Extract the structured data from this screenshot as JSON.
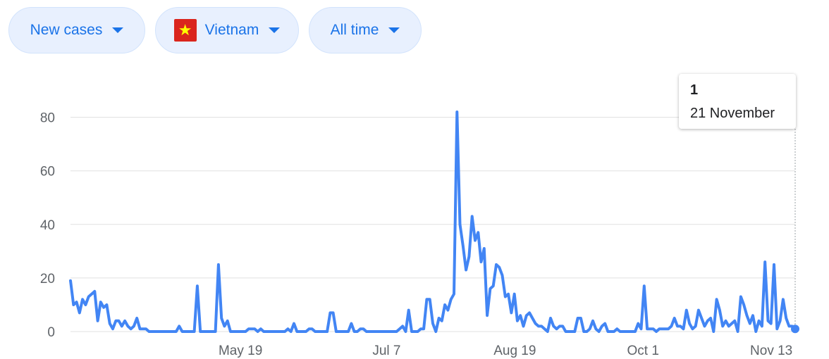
{
  "controls": {
    "metric": {
      "label": "New cases",
      "icon": "caret-down-icon"
    },
    "country": {
      "label": "Vietnam",
      "flag_icon": "vietnam-flag-icon",
      "flag_colors": {
        "field": "#da251d",
        "star": "#ffff00"
      }
    },
    "range": {
      "label": "All time",
      "icon": "caret-down-icon"
    }
  },
  "tooltip": {
    "value": "1",
    "date": "21 November"
  },
  "colors": {
    "series": "#4285f4",
    "accent": "#1a73e8",
    "grid": "#e0e0e0",
    "chip_bg": "#e8f0fe"
  },
  "chart_data": {
    "type": "line",
    "x_start": "2020-03-23",
    "x_end": "2020-11-21",
    "x_ticks": [
      "May 19",
      "Jul 7",
      "Aug 19",
      "Oct 1",
      "Nov 13"
    ],
    "y_ticks": [
      0,
      20,
      40,
      60,
      80
    ],
    "ylim": [
      0,
      82
    ],
    "grid": true,
    "legend": "none",
    "series": [
      {
        "values": [
          19,
          10,
          11,
          7,
          12,
          10,
          13,
          14,
          15,
          4,
          11,
          9,
          10,
          3,
          1,
          4,
          4,
          2,
          4,
          2,
          1,
          2,
          5,
          1,
          1,
          1,
          0,
          0,
          0,
          0,
          0,
          0,
          0,
          0,
          0,
          0,
          2,
          0,
          0,
          0,
          0,
          0,
          17,
          0,
          0,
          0,
          0,
          0,
          0,
          25,
          5,
          2,
          4,
          0,
          0,
          0,
          0,
          0,
          0,
          1,
          1,
          1,
          0,
          1,
          0,
          0,
          0,
          0,
          0,
          0,
          0,
          0,
          1,
          0,
          3,
          0,
          0,
          0,
          0,
          1,
          1,
          0,
          0,
          0,
          0,
          0,
          7,
          7,
          0,
          0,
          0,
          0,
          0,
          3,
          0,
          0,
          1,
          1,
          0,
          0,
          0,
          0,
          0,
          0,
          0,
          0,
          0,
          0,
          0,
          1,
          2,
          0,
          8,
          0,
          0,
          0,
          1,
          1,
          12,
          12,
          3,
          0,
          5,
          4,
          10,
          8,
          12,
          14,
          82,
          40,
          32,
          23,
          28,
          43,
          34,
          37,
          26,
          31,
          6,
          16,
          17,
          25,
          24,
          21,
          13,
          14,
          7,
          14,
          4,
          6,
          2,
          6,
          7,
          5,
          3,
          2,
          2,
          1,
          0,
          5,
          2,
          1,
          2,
          2,
          0,
          0,
          0,
          0,
          5,
          5,
          0,
          0,
          1,
          4,
          1,
          0,
          2,
          3,
          0,
          0,
          0,
          1,
          0,
          0,
          0,
          0,
          0,
          0,
          3,
          1,
          17,
          1,
          1,
          1,
          0,
          1,
          1,
          1,
          1,
          2,
          5,
          2,
          2,
          1,
          8,
          3,
          1,
          2,
          8,
          5,
          2,
          4,
          5,
          0,
          12,
          8,
          2,
          4,
          2,
          3,
          4,
          0,
          13,
          10,
          6,
          3,
          6,
          0,
          4,
          2,
          26,
          4,
          3,
          25,
          1,
          4,
          12,
          5,
          2,
          2,
          1
        ]
      }
    ]
  }
}
